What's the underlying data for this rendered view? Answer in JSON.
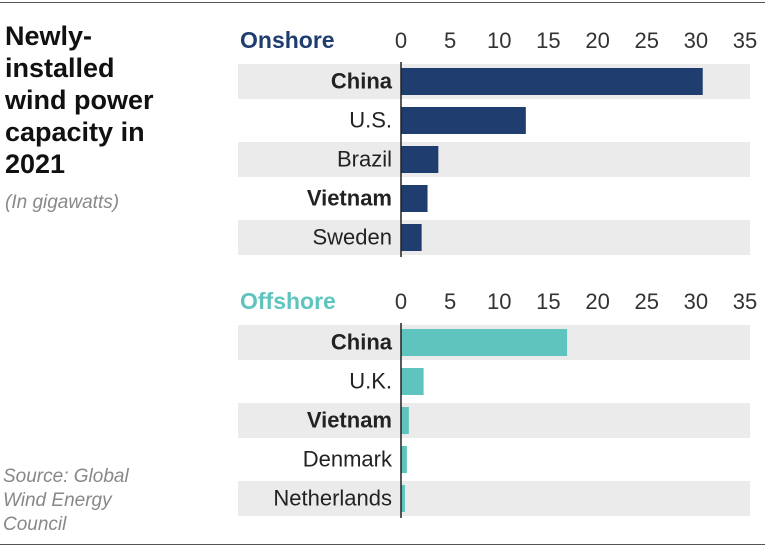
{
  "title": "Newly-installed wind power capacity in 2021",
  "subtitle": "(In gigawatts)",
  "source": "Source: Global Wind Energy Council",
  "chart_data": [
    {
      "type": "bar",
      "orientation": "horizontal",
      "title": "Onshore",
      "title_color": "#1f3d6e",
      "categories": [
        "China",
        "U.S.",
        "Brazil",
        "Vietnam",
        "Sweden"
      ],
      "emphasis": [
        true,
        false,
        false,
        true,
        false
      ],
      "values": [
        30.7,
        12.7,
        3.8,
        2.7,
        2.1
      ],
      "color": "#1f3d6e",
      "xlim": [
        0,
        35
      ],
      "xticks": [
        0,
        5,
        10,
        15,
        20,
        25,
        30,
        35
      ],
      "grid": false
    },
    {
      "type": "bar",
      "orientation": "horizontal",
      "title": "Offshore",
      "title_color": "#5fc4bd",
      "categories": [
        "China",
        "U.K.",
        "Vietnam",
        "Denmark",
        "Netherlands"
      ],
      "emphasis": [
        true,
        false,
        true,
        false,
        false
      ],
      "values": [
        16.9,
        2.3,
        0.8,
        0.6,
        0.4
      ],
      "color": "#5fc4bd",
      "xlim": [
        0,
        35
      ],
      "xticks": [
        0,
        5,
        10,
        15,
        20,
        25,
        30,
        35
      ],
      "grid": false
    }
  ]
}
